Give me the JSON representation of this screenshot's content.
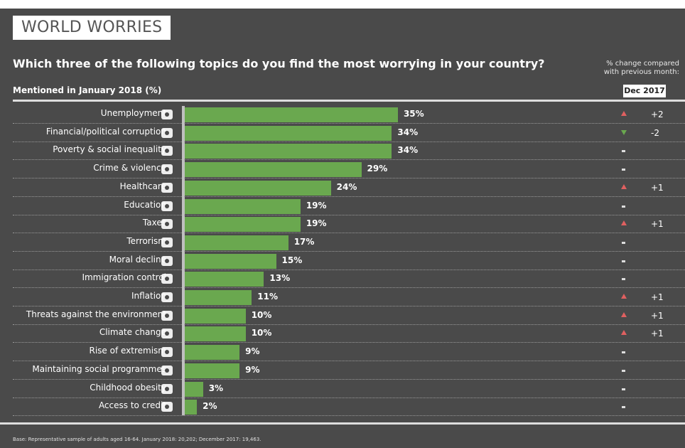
{
  "header": {
    "title": "WORLD WORRIES",
    "question": "Which three of the following topics do you find the most worrying in your country?",
    "subheading": "Mentioned in January 2018 (%)",
    "change_note_line1": "% change compared",
    "change_note_line2": "with previous month:",
    "compare_label": "Dec 2017"
  },
  "footer": {
    "base": "Base: Representative sample of adults aged 16-64. January 2018: 20,202; December 2017: 19,463."
  },
  "colors": {
    "bar": "#6aa84f",
    "up": "#e06060",
    "down": "#6aa84f",
    "neutral": "#dddddd",
    "background": "#4a4a4a"
  },
  "chart_data": {
    "type": "bar",
    "orientation": "horizontal",
    "title": "WORLD WORRIES",
    "subtitle": "Which three of the following topics do you find the most worrying in your country?",
    "xlabel": "Mentioned in January 2018 (%)",
    "xlim": [
      0,
      60
    ],
    "grid": false,
    "categories": [
      "Unemployment",
      "Financial/political corruption",
      "Poverty & social inequality",
      "Crime & violence",
      "Healthcare",
      "Education",
      "Taxes",
      "Terrorism",
      "Moral decline",
      "Immigration control",
      "Inflation",
      "Threats against the environment",
      "Climate change",
      "Rise of extremism",
      "Maintaining social programmes",
      "Childhood obesity",
      "Access to credit"
    ],
    "values": [
      35,
      34,
      34,
      29,
      24,
      19,
      19,
      17,
      15,
      13,
      11,
      10,
      10,
      9,
      9,
      3,
      2
    ],
    "value_labels": [
      "35%",
      "34%",
      "34%",
      "29%",
      "24%",
      "19%",
      "19%",
      "17%",
      "15%",
      "13%",
      "11%",
      "10%",
      "10%",
      "9%",
      "9%",
      "3%",
      "2%"
    ],
    "icons": [
      "unemployment-icon",
      "corruption-icon",
      "poverty-icon",
      "crime-icon",
      "healthcare-icon",
      "education-icon",
      "taxes-icon",
      "terrorism-icon",
      "moral-decline-icon",
      "immigration-icon",
      "inflation-icon",
      "environment-icon",
      "climate-icon",
      "extremism-icon",
      "social-programmes-icon",
      "obesity-icon",
      "credit-icon"
    ],
    "change_vs_dec_2017": [
      2,
      -2,
      0,
      0,
      1,
      0,
      1,
      0,
      0,
      0,
      1,
      1,
      1,
      0,
      0,
      0,
      0
    ],
    "change_labels": [
      "+2",
      "-2",
      "",
      "",
      "+1",
      "",
      "+1",
      "",
      "",
      "",
      "+1",
      "+1",
      "+1",
      "",
      "",
      "",
      ""
    ]
  }
}
